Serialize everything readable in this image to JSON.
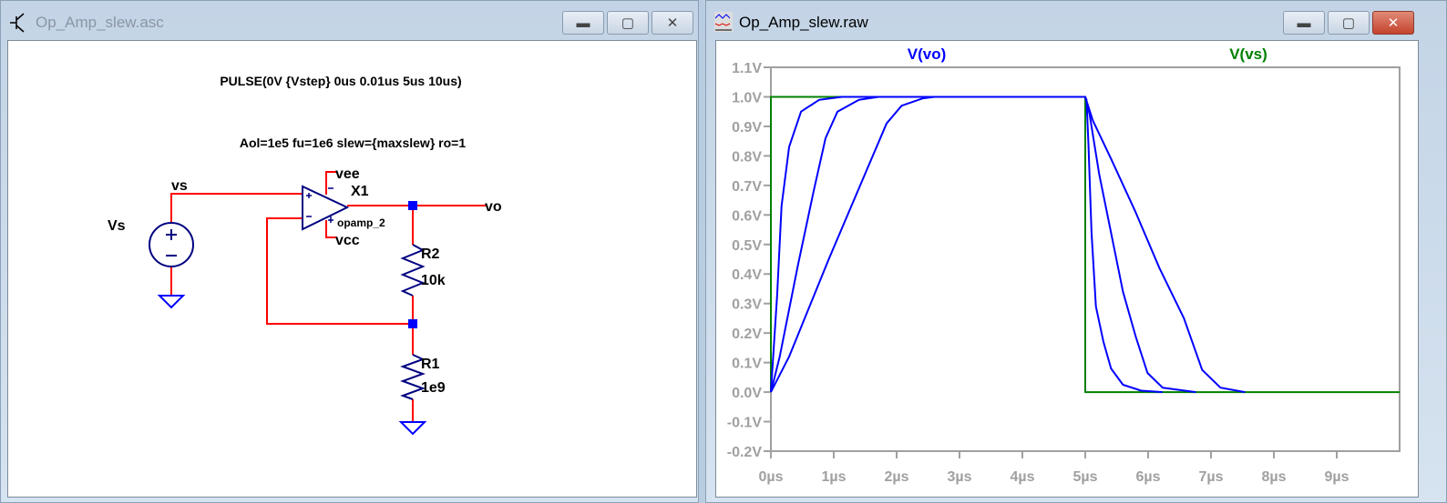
{
  "schematic_window": {
    "title": "Op_Amp_slew.asc",
    "icon": "transistor-icon",
    "buttons": {
      "minimize": "minimize-icon",
      "maximize": "maximize-icon",
      "close": "close-icon"
    },
    "directives": {
      "pulse": "PULSE(0V {Vstep} 0us 0.01us 5us 10us)",
      "opamp_params": "Aol=1e5 fu=1e6 slew={maxslew} ro=1"
    },
    "labels": {
      "source_name": "Vs",
      "net_vs": "vs",
      "net_vee": "vee",
      "opamp_name": "X1",
      "opamp_model": "opamp_2",
      "net_vcc": "vcc",
      "net_vo": "vo",
      "r2_name": "R2",
      "r2_value": "10k",
      "r1_name": "R1",
      "r1_value": "1e9"
    },
    "colors": {
      "wire": "#ff0000",
      "component": "#000080",
      "node": "#0000ff",
      "ground": "#0000ff"
    }
  },
  "waveform_window": {
    "title": "Op_Amp_slew.raw",
    "icon": "waveform-icon",
    "buttons": {
      "minimize": "minimize-icon",
      "maximize": "maximize-icon",
      "close": "close-icon"
    }
  },
  "chart_data": {
    "type": "line",
    "legend": [
      {
        "name": "V(vo)",
        "color": "#0000ff"
      },
      {
        "name": "V(vs)",
        "color": "#008000"
      }
    ],
    "xlim": [
      0,
      10
    ],
    "ylim": [
      -0.2,
      1.1
    ],
    "xticks": [
      "0µs",
      "1µs",
      "2µs",
      "3µs",
      "4µs",
      "5µs",
      "6µs",
      "7µs",
      "8µs",
      "9µs"
    ],
    "xtick_values": [
      0,
      1,
      2,
      3,
      4,
      5,
      6,
      7,
      8,
      9
    ],
    "yticks": [
      "1.1V",
      "1.0V",
      "0.9V",
      "0.8V",
      "0.7V",
      "0.6V",
      "0.5V",
      "0.4V",
      "0.3V",
      "0.2V",
      "0.1V",
      "0.0V",
      "-0.1V",
      "-0.2V"
    ],
    "ytick_values": [
      1.1,
      1.0,
      0.9,
      0.8,
      0.7,
      0.6,
      0.5,
      0.4,
      0.3,
      0.2,
      0.1,
      0.0,
      -0.1,
      -0.2
    ],
    "grid": false,
    "series": [
      {
        "name": "V(vs)",
        "color": "#008000",
        "x": [
          0,
          0,
          5,
          5,
          10
        ],
        "y": [
          0,
          1,
          1,
          0,
          0
        ]
      },
      {
        "name": "V(vo)",
        "color": "#0000ff",
        "x": [
          0,
          0.1,
          0.17,
          0.29,
          0.48,
          0.77,
          1.13,
          1.65,
          5,
          5.02,
          5.05,
          5.1,
          5.17,
          5.29,
          5.41,
          5.6,
          5.89,
          6.23
        ],
        "y": [
          0,
          0.33,
          0.63,
          0.83,
          0.95,
          0.99,
          1.0,
          1.0,
          1.0,
          0.99,
          0.84,
          0.54,
          0.29,
          0.17,
          0.08,
          0.025,
          0.005,
          0
        ]
      },
      {
        "name": "V(vo)",
        "color": "#0000ff",
        "x": [
          0,
          0.14,
          0.43,
          0.68,
          0.87,
          1.06,
          1.4,
          1.71,
          5,
          5.07,
          5.22,
          5.41,
          5.6,
          5.8,
          5.99,
          6.23,
          6.76
        ],
        "y": [
          0,
          0.12,
          0.43,
          0.68,
          0.86,
          0.95,
          0.99,
          1.0,
          1.0,
          0.94,
          0.74,
          0.54,
          0.34,
          0.19,
          0.065,
          0.015,
          0
        ]
      },
      {
        "name": "V(vo)",
        "color": "#0000ff",
        "x": [
          0,
          0.29,
          0.92,
          1.5,
          1.84,
          2.08,
          2.42,
          2.6,
          5,
          5.12,
          5.41,
          5.8,
          6.18,
          6.57,
          6.86,
          7.15,
          7.54
        ],
        "y": [
          0,
          0.12,
          0.45,
          0.74,
          0.91,
          0.97,
          0.995,
          1.0,
          1.0,
          0.92,
          0.79,
          0.61,
          0.42,
          0.25,
          0.075,
          0.015,
          0
        ]
      }
    ]
  }
}
